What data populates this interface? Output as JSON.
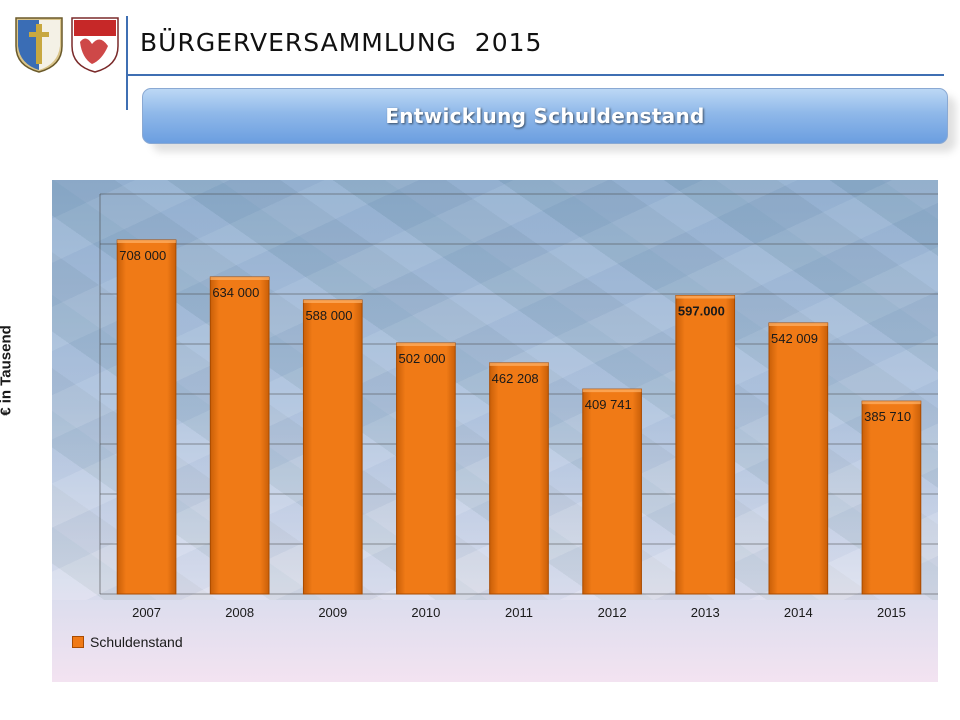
{
  "header": {
    "title": "BÜRGERVERSAMMLUNG  2015",
    "banner_title": "Entwicklung Schuldenstand"
  },
  "colors": {
    "accent": "#3f6fb3",
    "bar": "#f07a16",
    "bar_edge": "#a94b00"
  },
  "chart_data": {
    "type": "bar",
    "categories": [
      "2007",
      "2008",
      "2009",
      "2010",
      "2011",
      "2012",
      "2013",
      "2014",
      "2015"
    ],
    "series": [
      {
        "name": "Schuldenstand",
        "values": [
          708000,
          634000,
          588000,
          502000,
          462208,
          409741,
          597000,
          542009,
          385710
        ],
        "labels": [
          "708 000",
          "634 000",
          "588 000",
          "502 000",
          "462 208",
          "409 741",
          "597.000",
          "542 009",
          "385 710"
        ]
      }
    ],
    "ylabel": "€ in Tausend",
    "ylim": [
      0,
      800000
    ],
    "grid": true,
    "legend": "bottom-left"
  }
}
